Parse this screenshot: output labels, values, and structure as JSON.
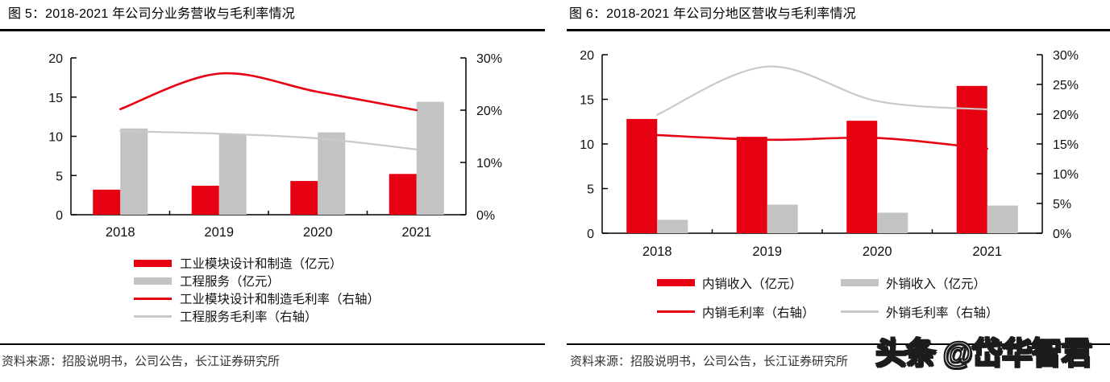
{
  "page": {
    "background": "#ffffff",
    "watermark": "头条 @岱华智君"
  },
  "colors": {
    "accent_red": "#e60012",
    "bar_gray": "#c3c3c3",
    "line_gray": "#c9c9c9",
    "axis_black": "#000000",
    "title_text": "#000000",
    "source_text": "#333333"
  },
  "figures": [
    {
      "title": "图 5：2018-2021 年公司分业务营收与毛利率情况",
      "source": "资料来源：招股说明书，公司公告，长江证券研究所"
    },
    {
      "title": "图 6：2018-2021 年公司分地区营收与毛利率情况",
      "source": "资料来源：招股说明书，公司公告，长江证券研究所"
    }
  ],
  "chart_data": [
    {
      "type": "combo",
      "title": "图 5：2018-2021 年公司分业务营收与毛利率情况",
      "categories": [
        "2018",
        "2019",
        "2020",
        "2021"
      ],
      "left_axis": {
        "range": [
          0,
          20
        ],
        "ticks": [
          0,
          5,
          10,
          15,
          20
        ],
        "unit": "亿元"
      },
      "right_axis": {
        "range": [
          0,
          30
        ],
        "ticks": [
          0,
          10,
          20,
          30
        ],
        "unit": "%"
      },
      "grid": false,
      "legend_position": "bottom-left single column",
      "series": [
        {
          "name": "工业模块设计和制造（亿元）",
          "kind": "bar",
          "axis": "left",
          "color": "#e60012",
          "values": [
            3.2,
            3.7,
            4.3,
            5.2
          ]
        },
        {
          "name": "工程服务（亿元）",
          "kind": "bar",
          "axis": "left",
          "color": "#c3c3c3",
          "values": [
            11.0,
            10.3,
            10.5,
            14.4
          ]
        },
        {
          "name": "工业模块设计和制造毛利率（右轴）",
          "kind": "line",
          "axis": "right",
          "color": "#e60012",
          "values": [
            20.2,
            27.0,
            23.5,
            20.0
          ]
        },
        {
          "name": "工程服务毛利率（右轴）",
          "kind": "line",
          "axis": "right",
          "color": "#c9c9c9",
          "values": [
            16.0,
            15.5,
            14.6,
            12.5
          ]
        }
      ]
    },
    {
      "type": "combo",
      "title": "图 6：2018-2021 年公司分地区营收与毛利率情况",
      "categories": [
        "2018",
        "2019",
        "2020",
        "2021"
      ],
      "left_axis": {
        "range": [
          0,
          20
        ],
        "ticks": [
          0,
          5,
          10,
          15,
          20
        ],
        "unit": "亿元"
      },
      "right_axis": {
        "range": [
          0,
          30
        ],
        "ticks": [
          0,
          5,
          10,
          15,
          20,
          25,
          30
        ],
        "unit": "%"
      },
      "grid": false,
      "legend_position": "bottom 2x2 grid",
      "series": [
        {
          "name": "内销收入（亿元）",
          "kind": "bar",
          "axis": "left",
          "color": "#e60012",
          "values": [
            12.8,
            10.8,
            12.6,
            16.5
          ]
        },
        {
          "name": "外销收入（亿元）",
          "kind": "bar",
          "axis": "left",
          "color": "#c3c3c3",
          "values": [
            1.5,
            3.2,
            2.3,
            3.1
          ]
        },
        {
          "name": "内销毛利率（右轴）",
          "kind": "line",
          "axis": "right",
          "color": "#e60012",
          "values": [
            16.5,
            15.7,
            16.0,
            14.2
          ]
        },
        {
          "name": "外销毛利率（右轴）",
          "kind": "line",
          "axis": "right",
          "color": "#c9c9c9",
          "values": [
            19.9,
            28.0,
            22.2,
            20.8
          ]
        }
      ]
    }
  ]
}
